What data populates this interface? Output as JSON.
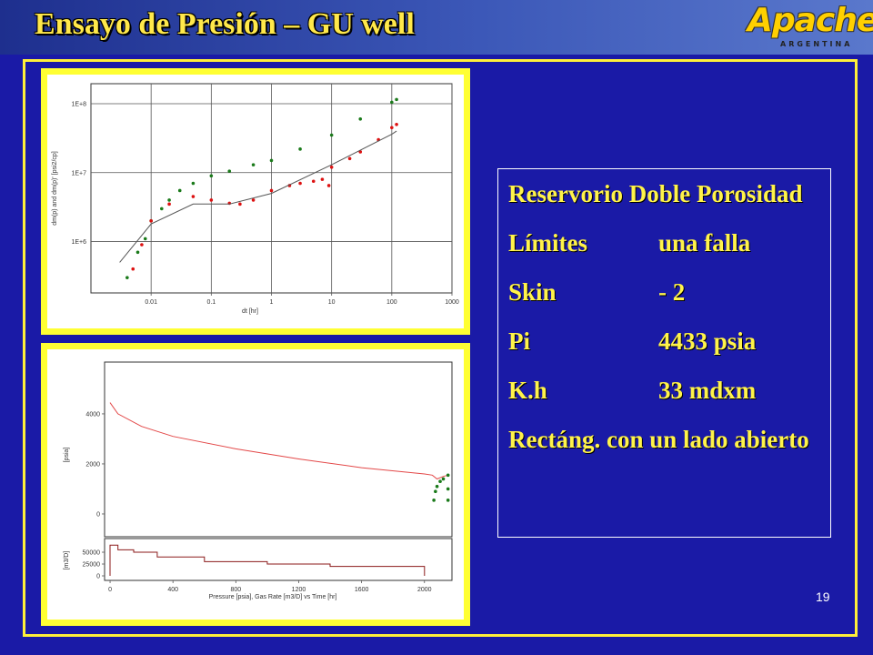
{
  "header": {
    "title": "Ensayo de Presión – GU well",
    "logo": "Apache",
    "logo_sub": "ARGENTINA"
  },
  "textbox": {
    "items": [
      {
        "label": "Reservorio Doble Porosidad"
      },
      {
        "label": "Límites",
        "value": "una falla"
      },
      {
        "label": "Skin",
        "value": "- 2"
      },
      {
        "label": "Pi",
        "value": "4433 psia"
      },
      {
        "label": "K.h",
        "value": "33 mdxm"
      },
      {
        "label": "Rectáng. con un lado abierto"
      }
    ]
  },
  "page_number": "19",
  "chart_data": [
    {
      "type": "scatter",
      "xlog": true,
      "ylog": true,
      "grid": true,
      "x_label": "dt [hr]",
      "y_label": "dm(p) and dm(p)' [psi2/cp]",
      "xlim": [
        0.001,
        1000
      ],
      "ylim": [
        180000,
        195000000
      ],
      "xticks": [
        0.01,
        0.1,
        1,
        10,
        100,
        1000
      ],
      "yticks": [
        {
          "value": 1000000,
          "label": "1E+6"
        },
        {
          "value": 10000000,
          "label": "1E+7"
        },
        {
          "value": 100000000,
          "label": "1E+8"
        }
      ],
      "series": [
        {
          "color": "#1a7a1a",
          "markers": true,
          "x": [
            0.004,
            0.006,
            0.008,
            0.01,
            0.015,
            0.02,
            0.03,
            0.05,
            0.1,
            0.2,
            0.5,
            1,
            3,
            10,
            30,
            100,
            120
          ],
          "values": [
            300000,
            700000,
            1100000,
            2000000,
            3000000,
            4000000,
            5500000,
            7000000,
            9000000,
            10500000,
            13000000,
            15000000,
            22000000,
            35000000,
            60000000,
            105000000,
            115000000
          ]
        },
        {
          "color": "#dd1111",
          "markers": true,
          "x": [
            0.005,
            0.007,
            0.01,
            0.02,
            0.05,
            0.1,
            0.2,
            0.3,
            0.5,
            1,
            2,
            3,
            5,
            7,
            9,
            10,
            20,
            30,
            60,
            100,
            120
          ],
          "values": [
            400000,
            900000,
            2000000,
            3500000,
            4500000,
            4000000,
            3600000,
            3500000,
            4000000,
            5500000,
            6500000,
            7000000,
            7500000,
            8000000,
            6500000,
            12000000,
            16000000,
            20000000,
            30000000,
            45000000,
            50000000
          ]
        },
        {
          "color": "#555555",
          "markers": false,
          "x": [
            0.003,
            0.01,
            0.05,
            0.2,
            1,
            10,
            100,
            120
          ],
          "values": [
            500000,
            1800000,
            3500000,
            3500000,
            5000000,
            13000000,
            36000000,
            40000000
          ]
        }
      ]
    },
    {
      "type": "line",
      "xlim": [
        -35,
        2175
      ],
      "ylim": [
        -910,
        6070
      ],
      "y_label": "[psia]",
      "yticks": [
        0,
        2000,
        4000
      ],
      "series": [
        {
          "color": "#e34848",
          "x": [
            0,
            50,
            200,
            400,
            800,
            1200,
            1600,
            2000,
            2050,
            2080,
            2120,
            2150
          ],
          "values": [
            4450,
            4000,
            3500,
            3100,
            2600,
            2200,
            1850,
            1600,
            1550,
            1400,
            1500,
            1550
          ]
        },
        {
          "color": "#1a7a1a",
          "markers": true,
          "x": [
            2060,
            2070,
            2080,
            2100,
            2120,
            2150,
            2150,
            2150
          ],
          "values": [
            550,
            900,
            1100,
            1300,
            1400,
            1550,
            1000,
            550
          ]
        }
      ]
    },
    {
      "type": "line",
      "xlim": [
        -35,
        2175
      ],
      "ylim": [
        -9600,
        78850
      ],
      "y_label": "[m3/D]",
      "x_label": "Pressure [psia], Gas Rate [m3/D] vs Time [hr]",
      "yticks": [
        0,
        25000,
        50000
      ],
      "xticks": [
        0,
        400,
        800,
        1200,
        1600,
        2000
      ],
      "series": [
        {
          "color": "#8b1a1a",
          "x": [
            0,
            0,
            50,
            50,
            150,
            150,
            300,
            300,
            600,
            600,
            1000,
            1000,
            1400,
            1400,
            2000,
            2000
          ],
          "values": [
            0,
            65000,
            65000,
            55000,
            55000,
            50000,
            50000,
            40000,
            40000,
            30000,
            30000,
            25000,
            25000,
            20000,
            20000,
            0
          ]
        }
      ]
    }
  ]
}
